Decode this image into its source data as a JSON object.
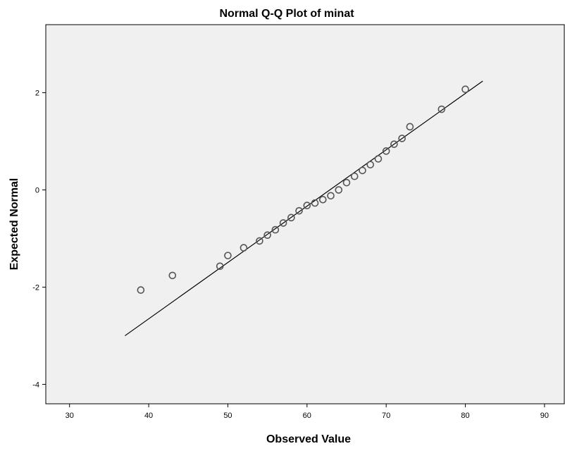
{
  "chart_data": {
    "type": "scatter",
    "title": "Normal Q-Q Plot of minat",
    "xlabel": "Observed Value",
    "ylabel": "Expected Normal",
    "xlim": [
      27,
      92.5
    ],
    "ylim": [
      -4.4,
      3.4
    ],
    "x_ticks": [
      30,
      40,
      50,
      60,
      70,
      80,
      90
    ],
    "y_ticks": [
      2,
      0,
      -2,
      -4
    ],
    "grid": false,
    "legend": "none",
    "colors": {
      "plot_background": "#f0f0f0",
      "marker_stroke": "#555555",
      "line": "#000000",
      "frame": "#000000"
    },
    "reference_line": {
      "x": [
        37,
        82.2
      ],
      "y": [
        -3.0,
        2.24
      ]
    },
    "points": [
      {
        "x": 39,
        "y": -2.06
      },
      {
        "x": 43,
        "y": -1.76
      },
      {
        "x": 49,
        "y": -1.57
      },
      {
        "x": 50,
        "y": -1.35
      },
      {
        "x": 52,
        "y": -1.19
      },
      {
        "x": 54,
        "y": -1.05
      },
      {
        "x": 55,
        "y": -0.93
      },
      {
        "x": 56,
        "y": -0.82
      },
      {
        "x": 57,
        "y": -0.68
      },
      {
        "x": 58,
        "y": -0.57
      },
      {
        "x": 59,
        "y": -0.43
      },
      {
        "x": 60,
        "y": -0.32
      },
      {
        "x": 61,
        "y": -0.27
      },
      {
        "x": 62,
        "y": -0.2
      },
      {
        "x": 63,
        "y": -0.12
      },
      {
        "x": 64,
        "y": 0.0
      },
      {
        "x": 65,
        "y": 0.15
      },
      {
        "x": 66,
        "y": 0.28
      },
      {
        "x": 67,
        "y": 0.4
      },
      {
        "x": 68,
        "y": 0.52
      },
      {
        "x": 69,
        "y": 0.64
      },
      {
        "x": 70,
        "y": 0.8
      },
      {
        "x": 71,
        "y": 0.94
      },
      {
        "x": 72,
        "y": 1.06
      },
      {
        "x": 73,
        "y": 1.3
      },
      {
        "x": 77,
        "y": 1.66
      },
      {
        "x": 80,
        "y": 2.07
      }
    ]
  }
}
